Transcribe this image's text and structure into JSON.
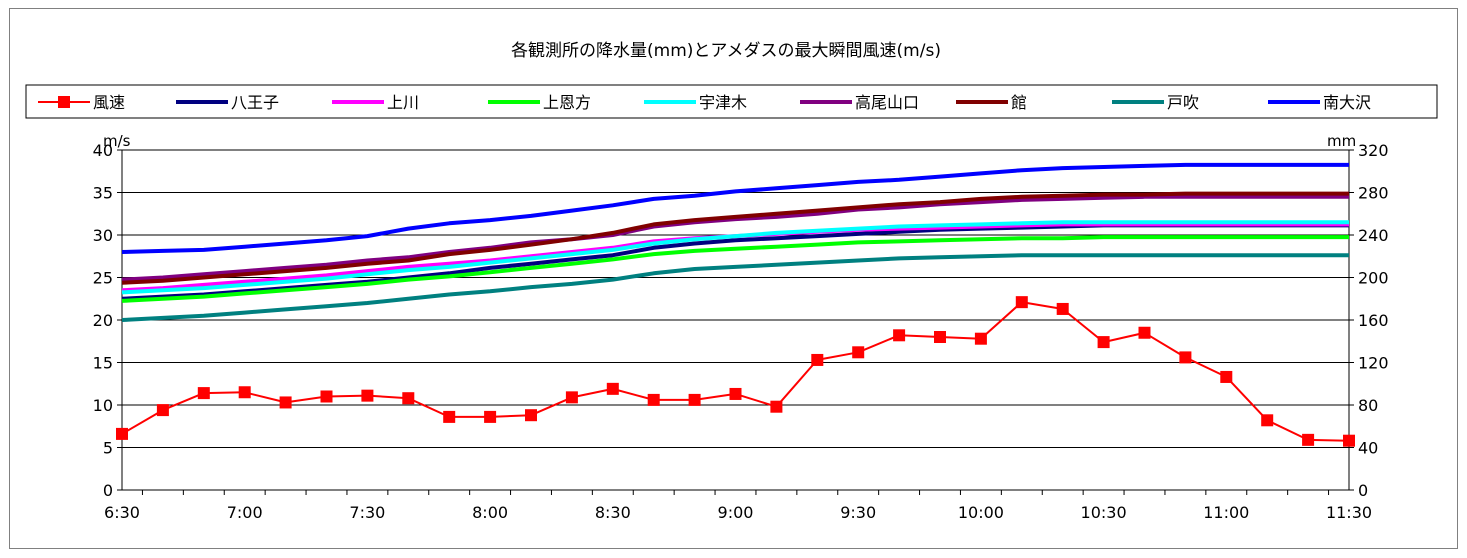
{
  "chart_data": {
    "type": "line",
    "title": "各観測所の降水量(mm)とアメダスの最大瞬間風速(m/s)",
    "y_left_unit": "m/s",
    "y_right_unit": "mm",
    "y_left_range": [
      0,
      40
    ],
    "y_right_range": [
      0,
      320
    ],
    "y_left_ticks": [
      0,
      5,
      10,
      15,
      20,
      25,
      30,
      35,
      40
    ],
    "y_right_ticks": [
      0,
      40,
      80,
      120,
      160,
      200,
      240,
      280,
      320
    ],
    "x_labels": [
      "6:30",
      "7:00",
      "7:30",
      "8:00",
      "8:30",
      "9:00",
      "9:30",
      "10:00",
      "10:30",
      "11:00",
      "11:30"
    ],
    "x_count": 31,
    "grid": true,
    "legend_position": "top",
    "series": [
      {
        "name": "風速",
        "axis": "left",
        "color": "#ff0000",
        "marker": "square",
        "values": [
          6.6,
          9.4,
          11.4,
          11.5,
          10.3,
          11.0,
          11.1,
          10.8,
          8.6,
          8.6,
          8.8,
          10.9,
          11.9,
          10.6,
          10.6,
          11.3,
          9.8,
          15.3,
          16.2,
          18.2,
          18.0,
          17.8,
          22.1,
          21.3,
          17.4,
          18.5,
          15.6,
          13.3,
          8.2,
          5.9,
          5.8
        ]
      },
      {
        "name": "八王子",
        "axis": "right",
        "color": "#000080",
        "values": [
          180,
          182,
          184,
          187,
          190,
          193,
          196,
          200,
          204,
          209,
          213,
          217,
          221,
          228,
          232,
          235,
          237,
          239,
          241,
          243,
          245,
          246,
          247,
          248,
          249,
          249,
          249,
          249,
          249,
          249,
          249
        ]
      },
      {
        "name": "上川",
        "axis": "right",
        "color": "#ff00ff",
        "values": [
          188,
          190,
          193,
          196,
          199,
          202,
          206,
          210,
          213,
          216,
          220,
          224,
          228,
          234,
          237,
          239,
          241,
          243,
          245,
          246,
          247,
          248,
          249,
          250,
          250,
          250,
          250,
          250,
          250,
          250,
          250
        ]
      },
      {
        "name": "上恩方",
        "axis": "right",
        "color": "#00ff00",
        "values": [
          178,
          180,
          182,
          185,
          188,
          191,
          194,
          198,
          201,
          205,
          209,
          213,
          217,
          222,
          225,
          227,
          229,
          231,
          233,
          234,
          235,
          236,
          237,
          237,
          238,
          238,
          238,
          238,
          238,
          238,
          238
        ]
      },
      {
        "name": "宇津木",
        "axis": "right",
        "color": "#00ffff",
        "values": [
          186,
          188,
          190,
          193,
          196,
          199,
          203,
          207,
          210,
          214,
          218,
          222,
          226,
          232,
          236,
          239,
          242,
          244,
          246,
          248,
          249,
          250,
          251,
          252,
          252,
          252,
          252,
          252,
          252,
          252,
          252
        ]
      },
      {
        "name": "高尾山口",
        "axis": "right",
        "color": "#800080",
        "values": [
          198,
          200,
          203,
          206,
          209,
          212,
          216,
          219,
          224,
          228,
          233,
          236,
          240,
          248,
          252,
          255,
          257,
          260,
          264,
          266,
          269,
          271,
          273,
          274,
          275,
          276,
          276,
          276,
          276,
          276,
          276
        ]
      },
      {
        "name": "館",
        "axis": "right",
        "color": "#800000",
        "values": [
          195,
          197,
          200,
          203,
          206,
          209,
          213,
          216,
          222,
          226,
          231,
          236,
          242,
          250,
          254,
          257,
          260,
          263,
          266,
          269,
          271,
          274,
          276,
          277,
          278,
          278,
          279,
          279,
          279,
          279,
          279
        ]
      },
      {
        "name": "戸吹",
        "axis": "right",
        "color": "#008080",
        "values": [
          160,
          162,
          164,
          167,
          170,
          173,
          176,
          180,
          184,
          187,
          191,
          194,
          198,
          204,
          208,
          210,
          212,
          214,
          216,
          218,
          219,
          220,
          221,
          221,
          221,
          221,
          221,
          221,
          221,
          221,
          221
        ]
      },
      {
        "name": "南大沢",
        "axis": "right",
        "color": "#0000ff",
        "values": [
          224,
          225,
          226,
          229,
          232,
          235,
          239,
          246,
          251,
          254,
          258,
          263,
          268,
          274,
          277,
          281,
          284,
          287,
          290,
          292,
          295,
          298,
          301,
          303,
          304,
          305,
          306,
          306,
          306,
          306,
          306
        ]
      }
    ]
  }
}
